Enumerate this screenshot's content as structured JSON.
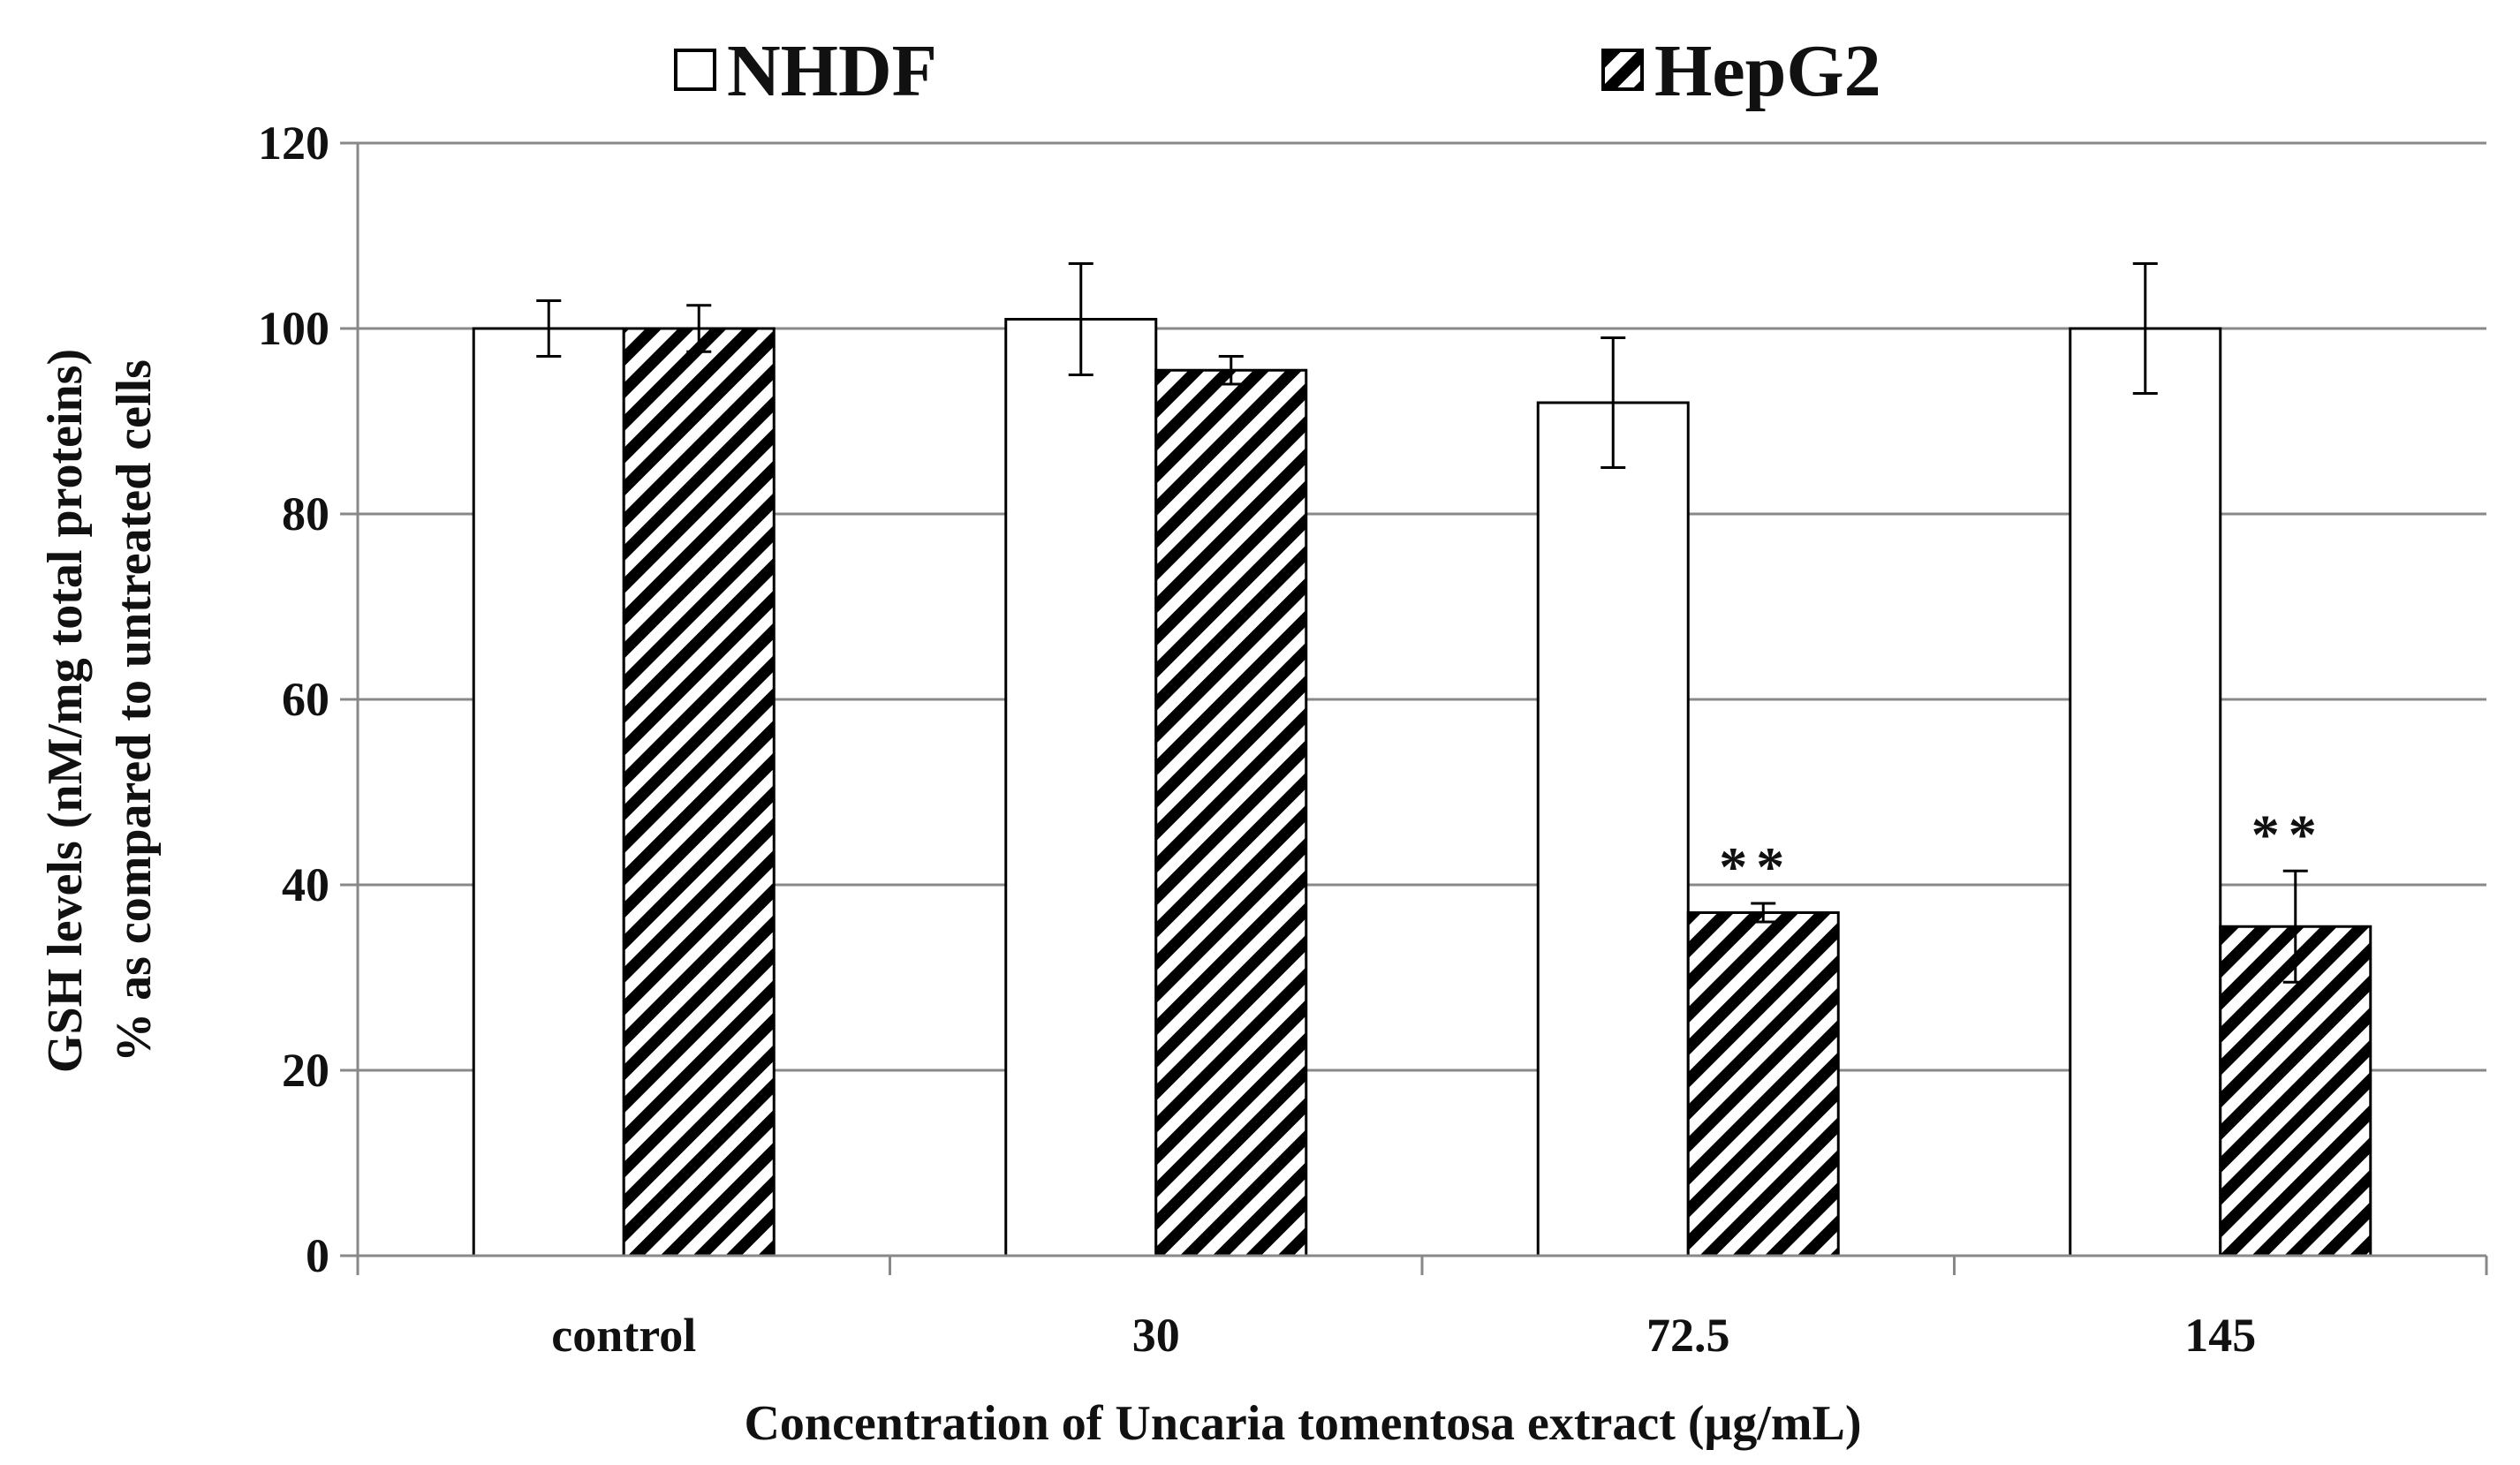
{
  "chart_data": {
    "type": "bar",
    "title": "",
    "xlabel": "Concentration  of Uncaria  tomentosa extract (μg/mL)",
    "ylabel_lines": [
      "GSH levels (nM/mg total proteins)",
      "% as compared to untreated cells"
    ],
    "ylim": [
      0,
      120
    ],
    "yticks": [
      "0",
      "20",
      "40",
      "60",
      "80",
      "100",
      "120"
    ],
    "grid": true,
    "legend_position": "top",
    "categories": [
      "control",
      "30",
      "72.5",
      "145"
    ],
    "series": [
      {
        "name": "NHDF",
        "pattern": "open",
        "values": [
          100,
          101,
          92,
          100
        ],
        "errors": [
          3,
          6,
          7,
          7
        ]
      },
      {
        "name": "HepG2",
        "pattern": "hatched",
        "values": [
          100,
          95.5,
          37,
          35.5
        ],
        "errors": [
          2.5,
          1.5,
          1,
          6
        ]
      }
    ],
    "annotations": [
      {
        "category_index": 2,
        "series_index": 1,
        "text": "**"
      },
      {
        "category_index": 3,
        "series_index": 1,
        "text": "**"
      }
    ],
    "colors": {
      "bar_fill": "#ffffff",
      "bar_stroke": "#000000",
      "hatch": "#000000",
      "grid": "#888888",
      "axis": "#888888"
    }
  }
}
